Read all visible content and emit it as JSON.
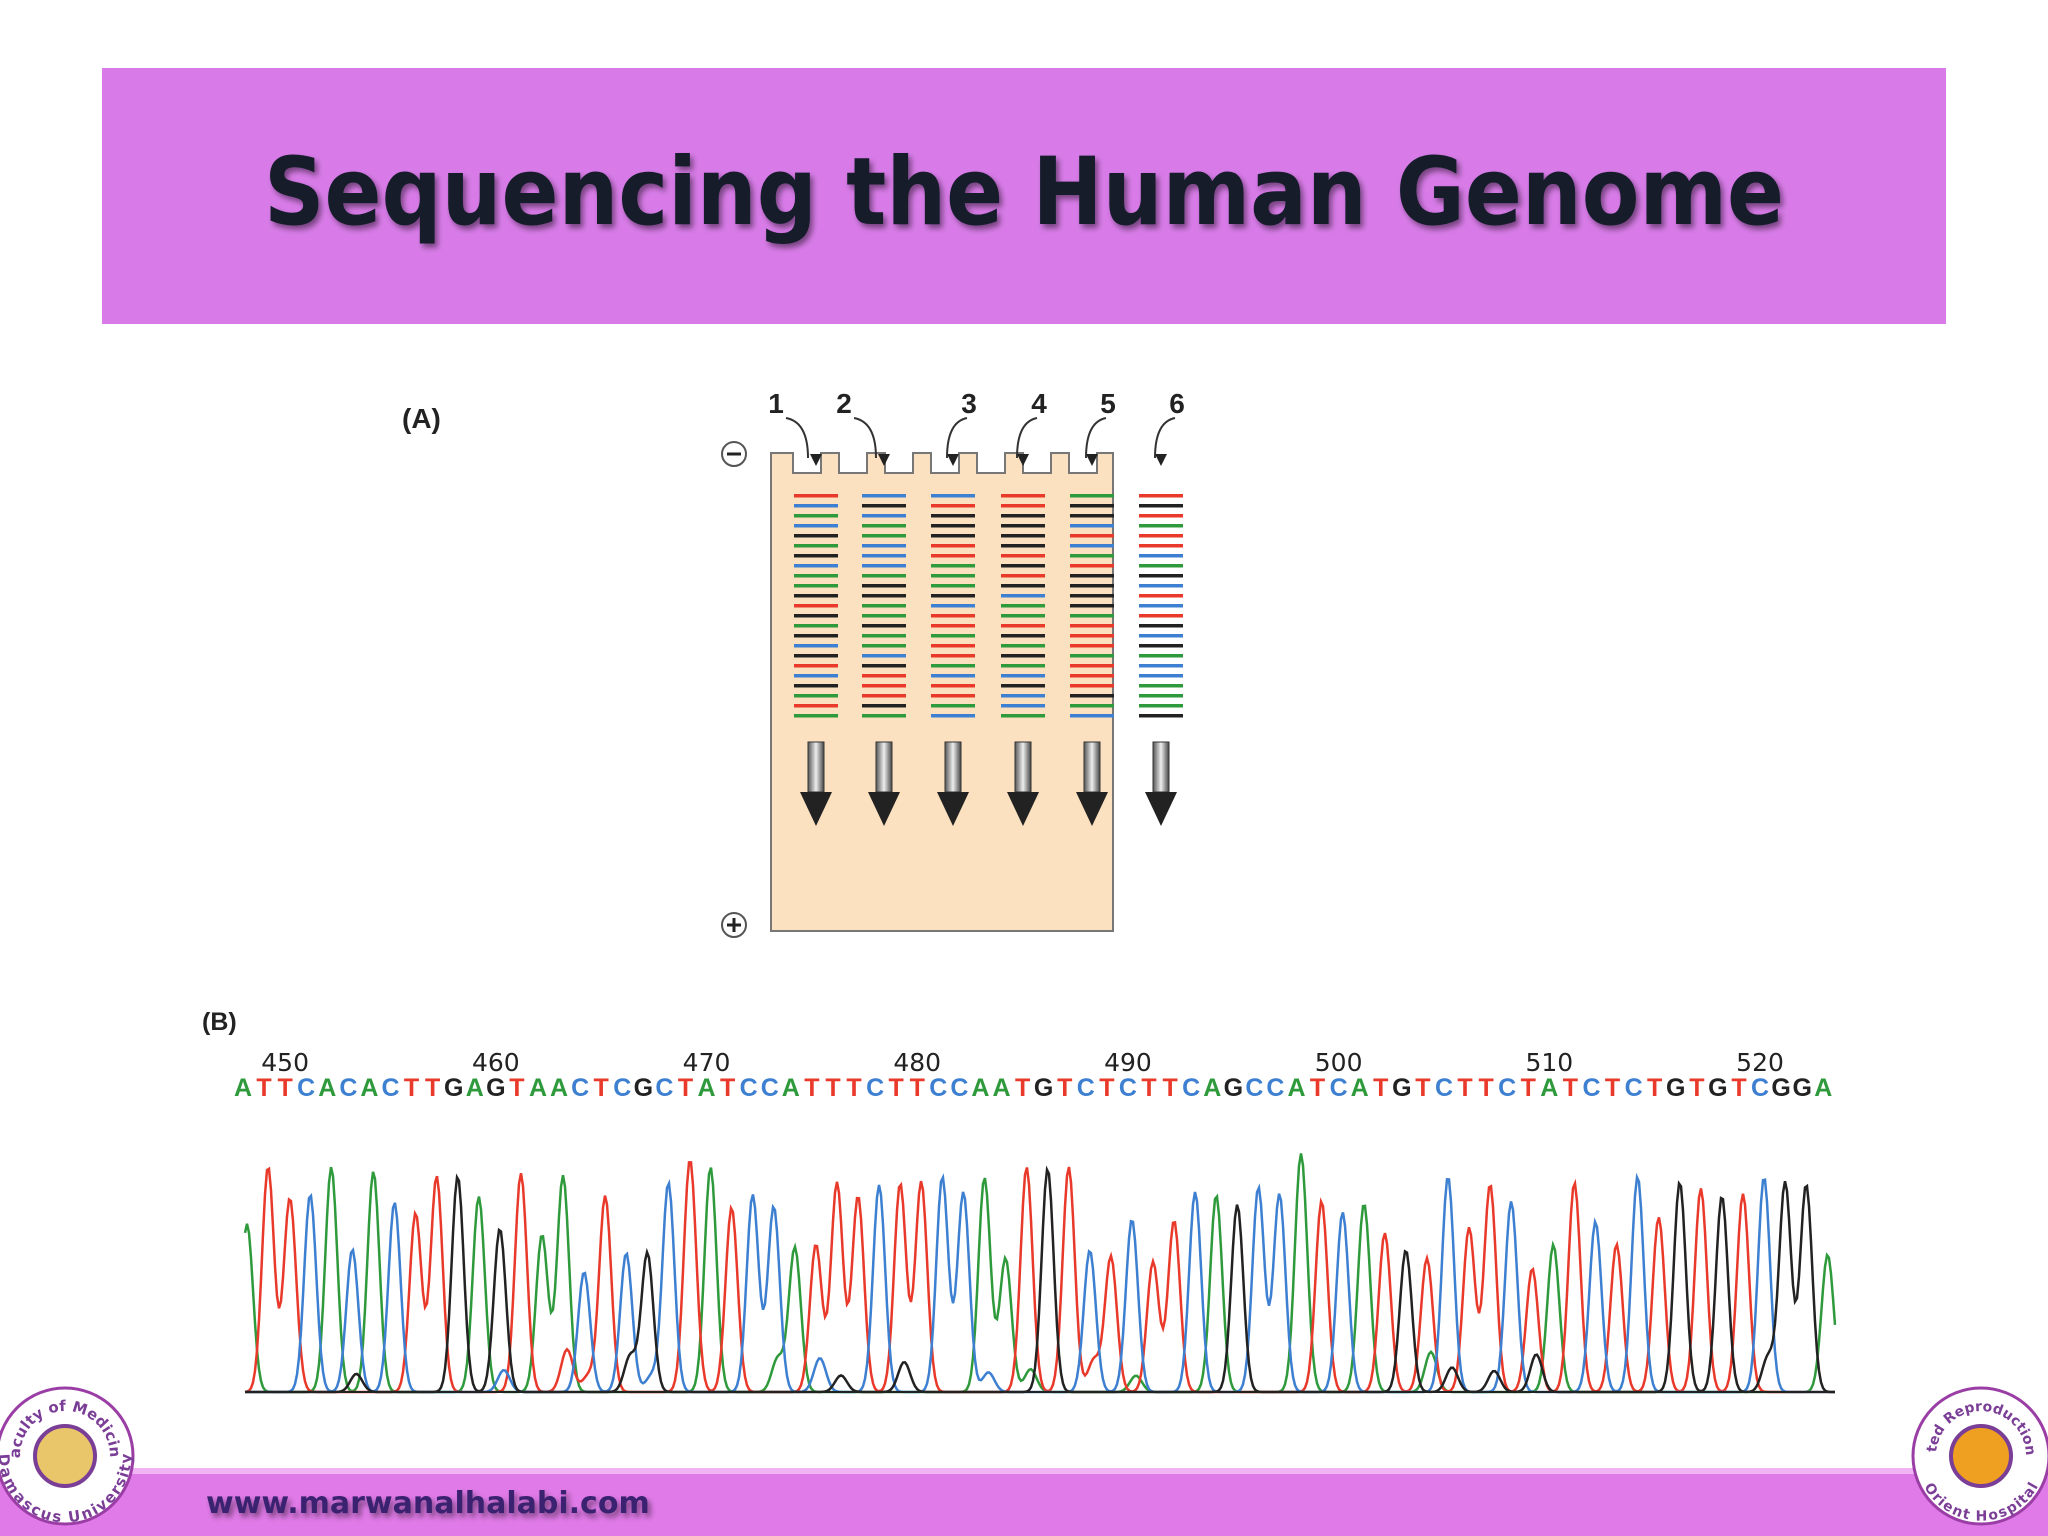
{
  "header": {
    "title": "Sequencing the Human Genome"
  },
  "panel_a": {
    "label": "(A)",
    "lanes": [
      1,
      2,
      3,
      4,
      5,
      6
    ]
  },
  "panel_b": {
    "label": "(B)",
    "positions": [
      450,
      460,
      470,
      480,
      490,
      500,
      510,
      520
    ],
    "sequence": [
      "A",
      "T",
      "T",
      "C",
      "A",
      "C",
      "A",
      "C",
      "T",
      "T",
      "G",
      "A",
      "G",
      "T",
      "A",
      "A",
      "C",
      "T",
      "C",
      "G",
      "C",
      "T",
      "A",
      "T",
      "C",
      "C",
      "A",
      "T",
      "T",
      "T",
      "C",
      "T",
      "T",
      "C",
      "C",
      "A",
      "A",
      "T",
      "G",
      "T",
      "C",
      "T",
      "C",
      "T",
      "T",
      "C",
      "A",
      "G",
      "C",
      "C",
      "A",
      "T",
      "C",
      "A",
      "T",
      "G",
      "T",
      "C",
      "T",
      "T",
      "C",
      "T",
      "A",
      "T",
      "C",
      "T",
      "C",
      "T",
      "G",
      "T",
      "G",
      "T",
      "C",
      "G",
      "G",
      "A"
    ]
  },
  "footer": {
    "website": "www.marwanalhalabi.com",
    "left_logo": {
      "top": "Faculty of Medicine",
      "bottom": "Damascus University"
    },
    "right_logo": {
      "top": "Assisted Reproduction Unit",
      "bottom": "Orient Hospital"
    }
  }
}
